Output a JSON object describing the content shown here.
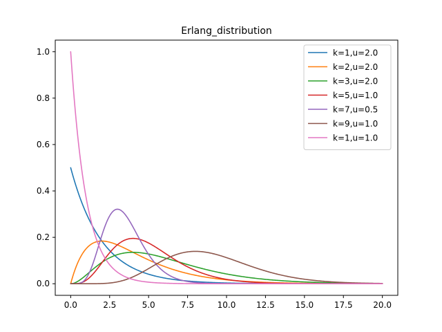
{
  "chart_data": {
    "type": "line",
    "title": "Erlang_distribution",
    "xlabel": "",
    "ylabel": "",
    "xlim": [
      -0.99,
      20.99
    ],
    "ylim": [
      -0.05,
      1.05
    ],
    "xticks": [
      0,
      2.5,
      5,
      7.5,
      10,
      12.5,
      15,
      17.5,
      20
    ],
    "xtick_labels": [
      "0.0",
      "2.5",
      "5.0",
      "7.5",
      "10.0",
      "12.5",
      "15.0",
      "17.5",
      "20.0"
    ],
    "yticks": [
      0,
      0.2,
      0.4,
      0.6,
      0.8,
      1.0
    ],
    "ytick_labels": [
      "0.0",
      "0.2",
      "0.4",
      "0.6",
      "0.8",
      "1.0"
    ],
    "grid": false,
    "legend_position": "top-right",
    "x_range": [
      0,
      20
    ],
    "series": [
      {
        "name": "k=1,u=2.0",
        "k": 1,
        "u": 2.0,
        "color": "#1f77b4"
      },
      {
        "name": "k=2,u=2.0",
        "k": 2,
        "u": 2.0,
        "color": "#ff7f0e"
      },
      {
        "name": "k=3,u=2.0",
        "k": 3,
        "u": 2.0,
        "color": "#2ca02c"
      },
      {
        "name": "k=5,u=1.0",
        "k": 5,
        "u": 1.0,
        "color": "#d62728"
      },
      {
        "name": "k=7,u=0.5",
        "k": 7,
        "u": 0.5,
        "color": "#9467bd"
      },
      {
        "name": "k=9,u=1.0",
        "k": 9,
        "u": 1.0,
        "color": "#8c564b"
      },
      {
        "name": "k=1,u=1.0",
        "k": 1,
        "u": 1.0,
        "color": "#e377c2"
      }
    ]
  }
}
